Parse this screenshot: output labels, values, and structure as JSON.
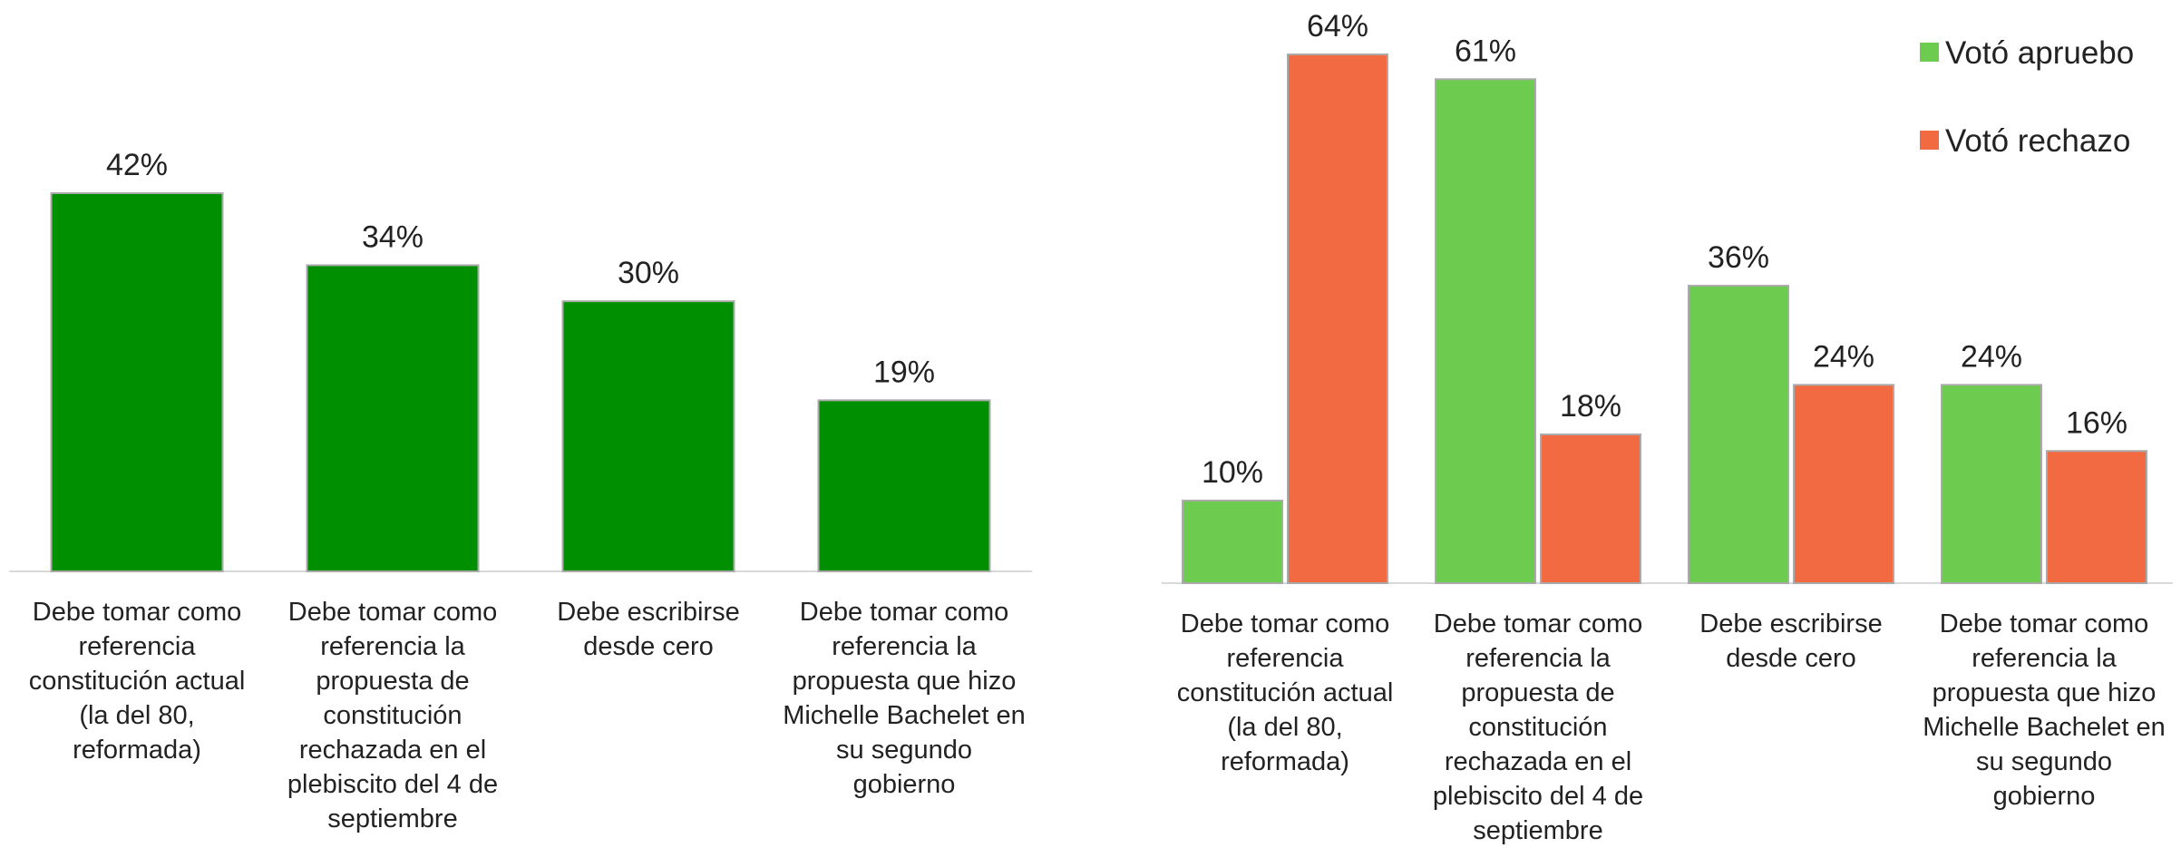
{
  "chart_data": [
    {
      "type": "bar",
      "categories": [
        "Debe tomar como referencia constitución actual (la del 80, reformada)",
        "Debe tomar como referencia la propuesta de constitución rechazada en el plebiscito del 4 de septiembre",
        "Debe escribirse desde cero",
        "Debe tomar como referencia la propuesta que hizo Michelle Bachelet en su segundo gobierno"
      ],
      "values": [
        42,
        34,
        30,
        19
      ],
      "value_labels": [
        "42%",
        "34%",
        "30%",
        "19%"
      ],
      "color": "#008f00"
    },
    {
      "type": "grouped_bar",
      "categories": [
        "Debe tomar como referencia constitución actual (la del 80, reformada)",
        "Debe tomar como referencia la propuesta de constitución rechazada en el plebiscito del 4 de septiembre",
        "Debe escribirse desde cero",
        "Debe tomar como referencia la propuesta que hizo Michelle Bachelet en su segundo gobierno"
      ],
      "series": [
        {
          "name": "Votó apruebo",
          "color": "#6dcb4f",
          "values": [
            10,
            61,
            36,
            24
          ],
          "value_labels": [
            "10%",
            "61%",
            "36%",
            "24%"
          ]
        },
        {
          "name": "Votó rechazo",
          "color": "#f26a41",
          "values": [
            64,
            18,
            24,
            16
          ],
          "value_labels": [
            "64%",
            "18%",
            "24%",
            "16%"
          ]
        }
      ],
      "legend": "top-right"
    }
  ]
}
